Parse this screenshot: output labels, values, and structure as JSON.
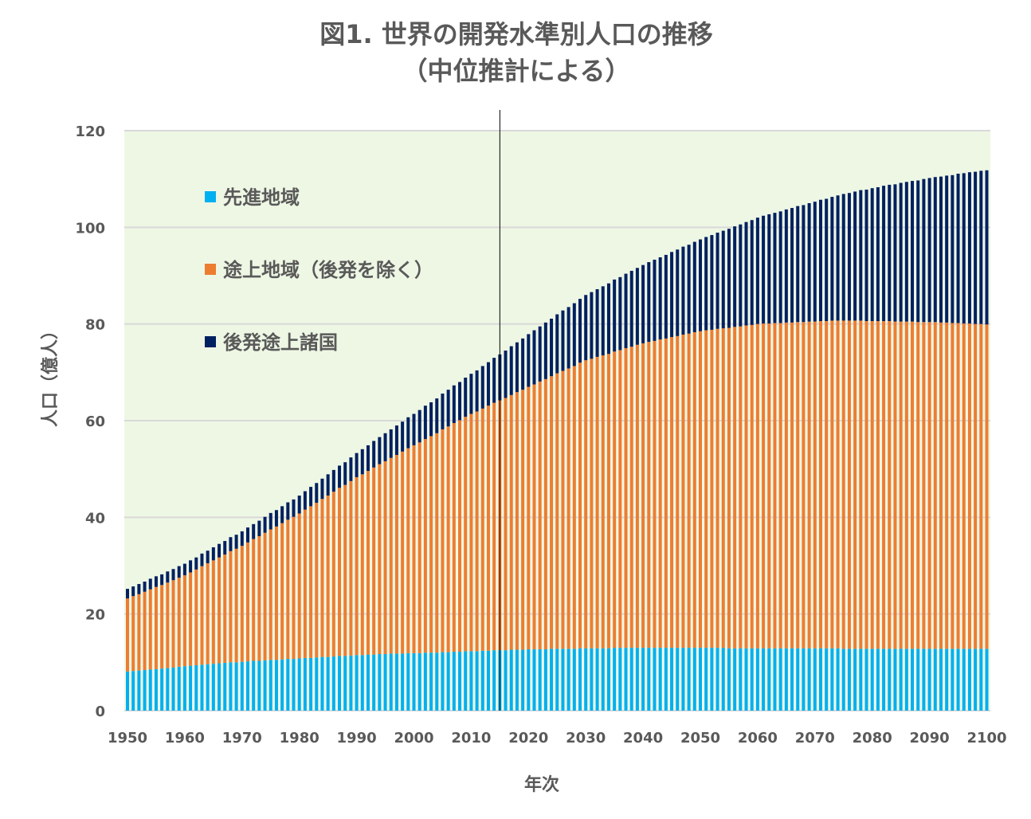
{
  "chart_data": {
    "type": "bar",
    "stacked": true,
    "title": "図1. 世界の開発水準別人口の推移",
    "subtitle": "（中位推計による）",
    "xlabel": "年次",
    "ylabel": "人口（億人）",
    "ylim": [
      0,
      120
    ],
    "yticks": [
      "0",
      "20",
      "40",
      "60",
      "80",
      "100",
      "120"
    ],
    "xticks": [
      "1950",
      "1960",
      "1970",
      "1980",
      "1990",
      "2000",
      "2010",
      "2020",
      "2030",
      "2040",
      "2050",
      "2060",
      "2070",
      "2080",
      "2090",
      "2100"
    ],
    "x_start": 1950,
    "x_end": 2100,
    "grid": true,
    "legend_placement": "top-left",
    "marker_year": 2015,
    "plot_background": "#EEF7E4",
    "series": [
      {
        "name": "先進地域",
        "color": "#00B0F0",
        "values": [
          8.1,
          8.2,
          8.3,
          8.4,
          8.5,
          8.6,
          8.7,
          8.8,
          8.9,
          9.1,
          9.2,
          9.3,
          9.4,
          9.5,
          9.6,
          9.7,
          9.8,
          9.9,
          10.0,
          10.0,
          10.1,
          10.2,
          10.3,
          10.3,
          10.4,
          10.5,
          10.5,
          10.6,
          10.7,
          10.7,
          10.8,
          10.9,
          10.9,
          11.0,
          11.1,
          11.1,
          11.2,
          11.3,
          11.3,
          11.4,
          11.5,
          11.5,
          11.6,
          11.6,
          11.7,
          11.7,
          11.8,
          11.8,
          11.8,
          11.9,
          11.9,
          11.9,
          12.0,
          12.0,
          12.0,
          12.1,
          12.1,
          12.2,
          12.2,
          12.3,
          12.3,
          12.3,
          12.4,
          12.4,
          12.5,
          12.5,
          12.5,
          12.6,
          12.6,
          12.6,
          12.7,
          12.7,
          12.7,
          12.7,
          12.8,
          12.8,
          12.8,
          12.8,
          12.8,
          12.9,
          12.9,
          12.9,
          12.9,
          12.9,
          12.9,
          13.0,
          13.0,
          13.0,
          13.0,
          13.0,
          13.0,
          13.0,
          13.0,
          13.0,
          13.0,
          13.0,
          13.0,
          13.0,
          13.0,
          13.0,
          13.0,
          13.0,
          13.0,
          13.0,
          13.0,
          12.9,
          12.9,
          12.9,
          12.9,
          12.9,
          12.9,
          12.9,
          12.9,
          12.9,
          12.9,
          12.9,
          12.9,
          12.9,
          12.9,
          12.9,
          12.9,
          12.9,
          12.9,
          12.9,
          12.9,
          12.8,
          12.8,
          12.8,
          12.8,
          12.8,
          12.8,
          12.8,
          12.8,
          12.8,
          12.8,
          12.8,
          12.8,
          12.8,
          12.8,
          12.8,
          12.8,
          12.8,
          12.8,
          12.8,
          12.8,
          12.8,
          12.8,
          12.8,
          12.8,
          12.8,
          12.8
        ]
      },
      {
        "name": "途上地域（後発を除く）",
        "color": "#ED7D31",
        "values": [
          15.1,
          15.5,
          15.8,
          16.2,
          16.6,
          17.0,
          17.3,
          17.7,
          18.1,
          18.4,
          18.8,
          19.3,
          19.8,
          20.4,
          20.9,
          21.4,
          21.9,
          22.4,
          23.0,
          23.5,
          24.0,
          24.6,
          25.2,
          25.8,
          26.4,
          27.0,
          27.6,
          28.2,
          28.8,
          29.4,
          30.0,
          30.7,
          31.4,
          32.0,
          32.7,
          33.4,
          34.1,
          34.8,
          35.4,
          36.1,
          36.8,
          37.4,
          38.0,
          38.7,
          39.3,
          39.9,
          40.5,
          41.1,
          41.8,
          42.4,
          43.0,
          43.6,
          44.2,
          44.8,
          45.4,
          46.1,
          46.7,
          47.3,
          47.9,
          48.5,
          49.1,
          49.6,
          50.1,
          50.7,
          51.2,
          51.7,
          52.2,
          52.7,
          53.3,
          53.8,
          54.3,
          54.8,
          55.4,
          55.9,
          56.4,
          57.0,
          57.5,
          58.0,
          58.5,
          59.1,
          59.6,
          59.9,
          60.3,
          60.6,
          60.9,
          61.3,
          61.6,
          62.0,
          62.3,
          62.7,
          63.0,
          63.3,
          63.5,
          63.8,
          64.0,
          64.3,
          64.5,
          64.8,
          65.0,
          65.3,
          65.5,
          65.7,
          65.8,
          66.0,
          66.1,
          66.3,
          66.5,
          66.6,
          66.8,
          66.9,
          67.1,
          67.2,
          67.2,
          67.3,
          67.3,
          67.4,
          67.4,
          67.5,
          67.5,
          67.6,
          67.6,
          67.7,
          67.7,
          67.8,
          67.8,
          67.9,
          67.9,
          67.9,
          67.9,
          67.8,
          67.8,
          67.8,
          67.8,
          67.8,
          67.7,
          67.7,
          67.7,
          67.7,
          67.6,
          67.6,
          67.6,
          67.6,
          67.5,
          67.5,
          67.4,
          67.4,
          67.3,
          67.3,
          67.2,
          67.2,
          67.1
        ]
      },
      {
        "name": "後発途上諸国",
        "color": "#002060",
        "values": [
          2.0,
          2.0,
          2.1,
          2.1,
          2.2,
          2.2,
          2.2,
          2.3,
          2.3,
          2.4,
          2.4,
          2.5,
          2.5,
          2.6,
          2.6,
          2.7,
          2.8,
          2.8,
          2.9,
          2.9,
          3.0,
          3.1,
          3.1,
          3.2,
          3.3,
          3.4,
          3.4,
          3.5,
          3.6,
          3.6,
          3.7,
          3.8,
          4.0,
          4.1,
          4.2,
          4.4,
          4.5,
          4.6,
          4.7,
          4.9,
          5.0,
          5.2,
          5.3,
          5.5,
          5.6,
          5.8,
          5.9,
          6.1,
          6.2,
          6.4,
          6.5,
          6.7,
          6.9,
          7.0,
          7.2,
          7.4,
          7.6,
          7.8,
          7.9,
          8.1,
          8.3,
          8.5,
          8.8,
          9.0,
          9.3,
          9.5,
          9.8,
          10.1,
          10.3,
          10.6,
          10.9,
          11.2,
          11.4,
          11.7,
          11.9,
          12.2,
          12.5,
          12.7,
          13.0,
          13.2,
          13.5,
          13.8,
          14.0,
          14.3,
          14.6,
          14.9,
          15.1,
          15.4,
          15.7,
          15.9,
          16.2,
          16.5,
          16.8,
          17.0,
          17.3,
          17.6,
          17.9,
          18.2,
          18.4,
          18.7,
          19.0,
          19.3,
          19.6,
          19.9,
          20.2,
          20.5,
          20.8,
          21.1,
          21.4,
          21.7,
          22.0,
          22.3,
          22.6,
          22.8,
          23.1,
          23.4,
          23.7,
          24.0,
          24.2,
          24.5,
          24.8,
          25.1,
          25.3,
          25.6,
          25.9,
          26.2,
          26.4,
          26.7,
          27.0,
          27.2,
          27.5,
          27.7,
          28.0,
          28.2,
          28.4,
          28.7,
          28.9,
          29.1,
          29.3,
          29.6,
          29.8,
          30.0,
          30.2,
          30.4,
          30.6,
          30.9,
          31.1,
          31.3,
          31.5,
          31.7,
          31.9
        ]
      }
    ]
  }
}
